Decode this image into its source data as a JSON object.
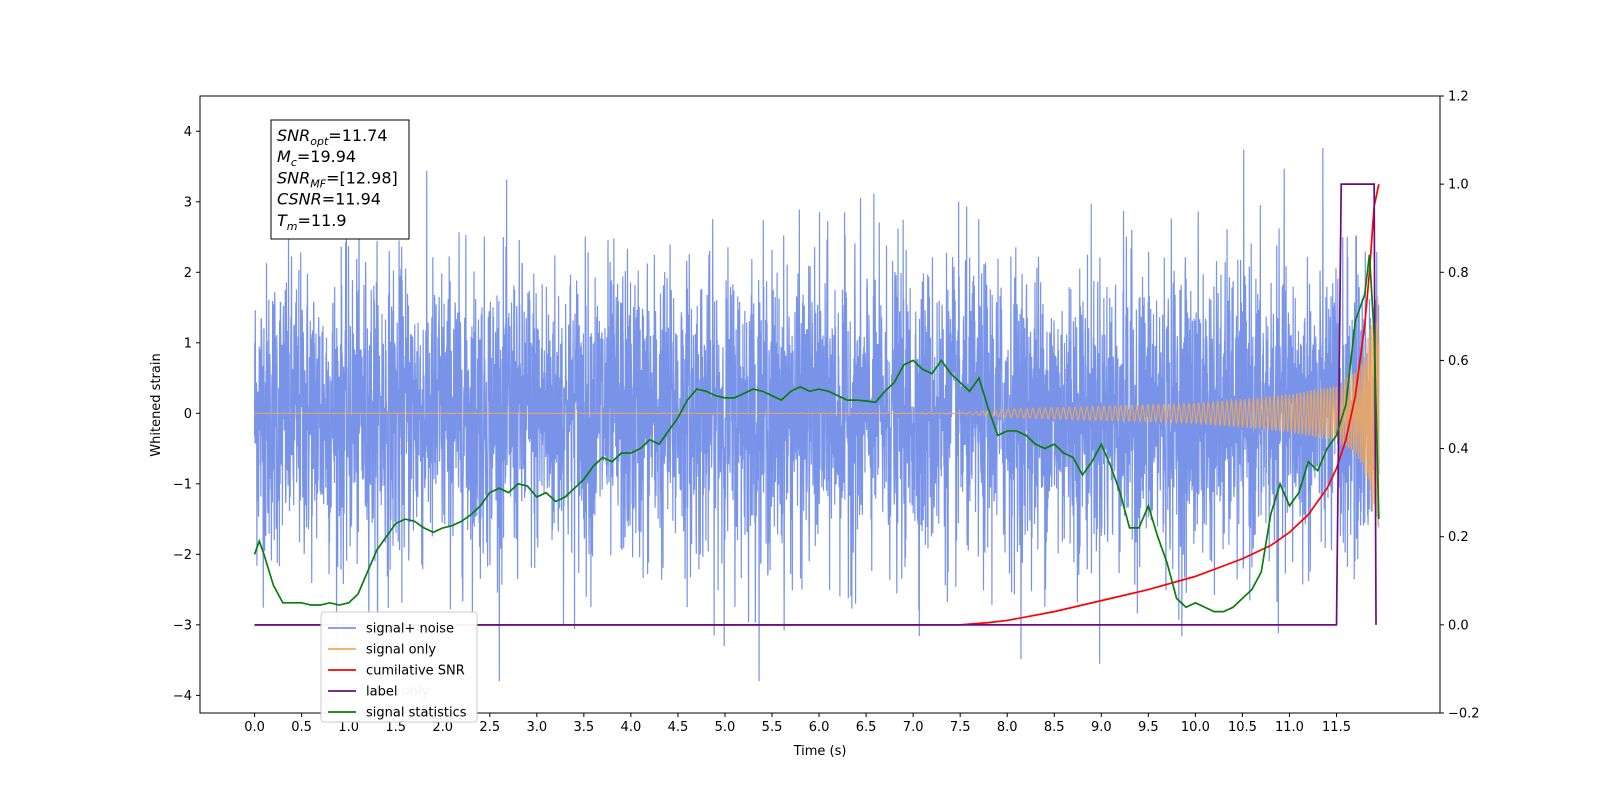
{
  "chart_data": {
    "type": "line",
    "title": "",
    "xlabel": "Time (s)",
    "ylabel": "Whitened strain",
    "xlim": [
      -0.58,
      12.6
    ],
    "ylim": [
      -4.25,
      4.5
    ],
    "y2lim": [
      -0.2,
      1.2
    ],
    "x_ticks": [
      0.0,
      0.5,
      1.0,
      1.5,
      2.0,
      2.5,
      3.0,
      3.5,
      4.0,
      4.5,
      5.0,
      5.5,
      6.0,
      6.5,
      7.0,
      7.5,
      8.0,
      8.5,
      9.0,
      9.5,
      10.0,
      10.5,
      11.0,
      11.5
    ],
    "x_tick_labels": [
      "0.0",
      "0.5",
      "1.0",
      "1.5",
      "2.0",
      "2.5",
      "3.0",
      "3.5",
      "4.0",
      "4.5",
      "5.0",
      "5.5",
      "6.0",
      "6.5",
      "7.0",
      "7.5",
      "8.0",
      "8.5",
      "9.0",
      "9.5",
      "10.0",
      "10.5",
      "11.0",
      "11.5"
    ],
    "y_ticks": [
      -4,
      -3,
      -2,
      -1,
      0,
      1,
      2,
      3,
      4
    ],
    "y_tick_labels": [
      "−4",
      "−3",
      "−2",
      "−1",
      "0",
      "1",
      "2",
      "3",
      "4"
    ],
    "y2_ticks": [
      -0.2,
      0.0,
      0.2,
      0.4,
      0.6,
      0.8,
      1.0,
      1.2
    ],
    "y2_tick_labels": [
      "−0.2",
      "0.0",
      "0.2",
      "0.4",
      "0.6",
      "0.8",
      "1.0",
      "1.2"
    ],
    "grid": false,
    "legend_position": "lower-left",
    "annotation": {
      "lines": [
        {
          "sym": "SNR",
          "sub": "opt",
          "value": "=11.74"
        },
        {
          "sym": "M",
          "sub": "c",
          "value": "=19.94"
        },
        {
          "sym": "SNR",
          "sub": "MF",
          "value": "=[12.98]"
        },
        {
          "sym": "CSNR",
          "sub": "",
          "value": "=11.94"
        },
        {
          "sym": "T",
          "sub": "m",
          "value": "=11.9"
        }
      ]
    },
    "series": [
      {
        "name": "signal+ noise",
        "axis": "left",
        "color": "#7893e8",
        "description_values": {
          "x_range": [
            0.0,
            11.95
          ],
          "y_min": -3.8,
          "y_max": 4.12,
          "typical_peak": 2.5
        }
      },
      {
        "name": "signal only",
        "axis": "left",
        "color": "#f2a85a",
        "description_values": {
          "x_range": [
            0.0,
            11.95
          ],
          "envelope": [
            [
              0.0,
              0.0
            ],
            [
              7.5,
              0.005
            ],
            [
              8.0,
              0.06
            ],
            [
              9.0,
              0.1
            ],
            [
              10.0,
              0.14
            ],
            [
              10.5,
              0.2
            ],
            [
              11.0,
              0.27
            ],
            [
              11.5,
              0.4
            ],
            [
              11.7,
              0.6
            ],
            [
              11.8,
              0.85
            ],
            [
              11.87,
              1.3
            ],
            [
              11.92,
              1.7
            ]
          ]
        }
      },
      {
        "name": "cumilative SNR",
        "axis": "right",
        "color": "#ff0000",
        "x": [
          0.0,
          7.5,
          7.8,
          8.0,
          8.5,
          9.0,
          9.5,
          10.0,
          10.5,
          10.8,
          11.0,
          11.2,
          11.4,
          11.5,
          11.6,
          11.7,
          11.8,
          11.85,
          11.9,
          11.95
        ],
        "y": [
          0.0,
          0.0,
          0.005,
          0.01,
          0.03,
          0.055,
          0.08,
          0.11,
          0.15,
          0.18,
          0.21,
          0.25,
          0.31,
          0.355,
          0.42,
          0.52,
          0.68,
          0.8,
          0.95,
          1.0
        ]
      },
      {
        "name": "label",
        "axis": "right",
        "color": "#6a0d83",
        "x": [
          0.0,
          11.5,
          11.55,
          11.9,
          11.92
        ],
        "y": [
          0.0,
          0.0,
          1.0,
          1.0,
          0.0
        ]
      },
      {
        "name": "signal statistics",
        "axis": "right",
        "color": "#0a7d0a",
        "x": [
          0.0,
          0.05,
          0.1,
          0.2,
          0.3,
          0.4,
          0.5,
          0.6,
          0.7,
          0.8,
          0.9,
          1.0,
          1.1,
          1.2,
          1.3,
          1.4,
          1.5,
          1.6,
          1.7,
          1.8,
          1.9,
          2.0,
          2.1,
          2.2,
          2.3,
          2.4,
          2.5,
          2.6,
          2.7,
          2.8,
          2.9,
          3.0,
          3.1,
          3.2,
          3.3,
          3.4,
          3.5,
          3.6,
          3.7,
          3.8,
          3.9,
          4.0,
          4.1,
          4.2,
          4.3,
          4.4,
          4.5,
          4.6,
          4.7,
          4.8,
          4.9,
          5.0,
          5.1,
          5.2,
          5.3,
          5.4,
          5.5,
          5.6,
          5.7,
          5.8,
          5.9,
          6.0,
          6.1,
          6.2,
          6.3,
          6.4,
          6.5,
          6.6,
          6.7,
          6.8,
          6.9,
          7.0,
          7.1,
          7.2,
          7.3,
          7.4,
          7.5,
          7.6,
          7.7,
          7.8,
          7.9,
          8.0,
          8.1,
          8.2,
          8.3,
          8.4,
          8.5,
          8.6,
          8.7,
          8.8,
          8.9,
          9.0,
          9.1,
          9.2,
          9.3,
          9.4,
          9.5,
          9.6,
          9.7,
          9.8,
          9.9,
          10.0,
          10.1,
          10.2,
          10.3,
          10.4,
          10.5,
          10.6,
          10.7,
          10.8,
          10.9,
          11.0,
          11.1,
          11.2,
          11.3,
          11.4,
          11.5,
          11.6,
          11.7,
          11.8,
          11.85,
          11.9,
          11.95
        ],
        "y": [
          0.16,
          0.19,
          0.16,
          0.09,
          0.05,
          0.05,
          0.05,
          0.045,
          0.045,
          0.05,
          0.045,
          0.05,
          0.07,
          0.12,
          0.17,
          0.2,
          0.23,
          0.24,
          0.235,
          0.22,
          0.21,
          0.22,
          0.225,
          0.235,
          0.25,
          0.27,
          0.3,
          0.31,
          0.3,
          0.32,
          0.315,
          0.29,
          0.3,
          0.28,
          0.29,
          0.31,
          0.33,
          0.36,
          0.38,
          0.37,
          0.39,
          0.39,
          0.4,
          0.42,
          0.41,
          0.44,
          0.47,
          0.51,
          0.535,
          0.53,
          0.52,
          0.515,
          0.515,
          0.525,
          0.535,
          0.53,
          0.52,
          0.51,
          0.53,
          0.54,
          0.53,
          0.535,
          0.53,
          0.52,
          0.51,
          0.51,
          0.508,
          0.505,
          0.53,
          0.55,
          0.59,
          0.6,
          0.58,
          0.57,
          0.6,
          0.57,
          0.55,
          0.53,
          0.56,
          0.49,
          0.43,
          0.44,
          0.44,
          0.43,
          0.41,
          0.4,
          0.41,
          0.39,
          0.38,
          0.34,
          0.37,
          0.41,
          0.36,
          0.3,
          0.22,
          0.22,
          0.27,
          0.2,
          0.14,
          0.06,
          0.04,
          0.05,
          0.04,
          0.03,
          0.03,
          0.04,
          0.06,
          0.08,
          0.12,
          0.25,
          0.32,
          0.27,
          0.3,
          0.37,
          0.35,
          0.4,
          0.43,
          0.5,
          0.69,
          0.75,
          0.84,
          0.66,
          0.24
        ]
      }
    ],
    "legend": [
      {
        "label": "signal+ noise",
        "color": "#7893e8"
      },
      {
        "label": "signal only",
        "color": "#f2a85a"
      },
      {
        "label": "cumilative SNR",
        "color": "#ff0000"
      },
      {
        "label": "label",
        "color": "#6a0d83"
      },
      {
        "label": "signal statistics",
        "color": "#0a7d0a"
      }
    ],
    "legend_obscured_labels": [
      "label only",
      "signal statistics"
    ]
  }
}
